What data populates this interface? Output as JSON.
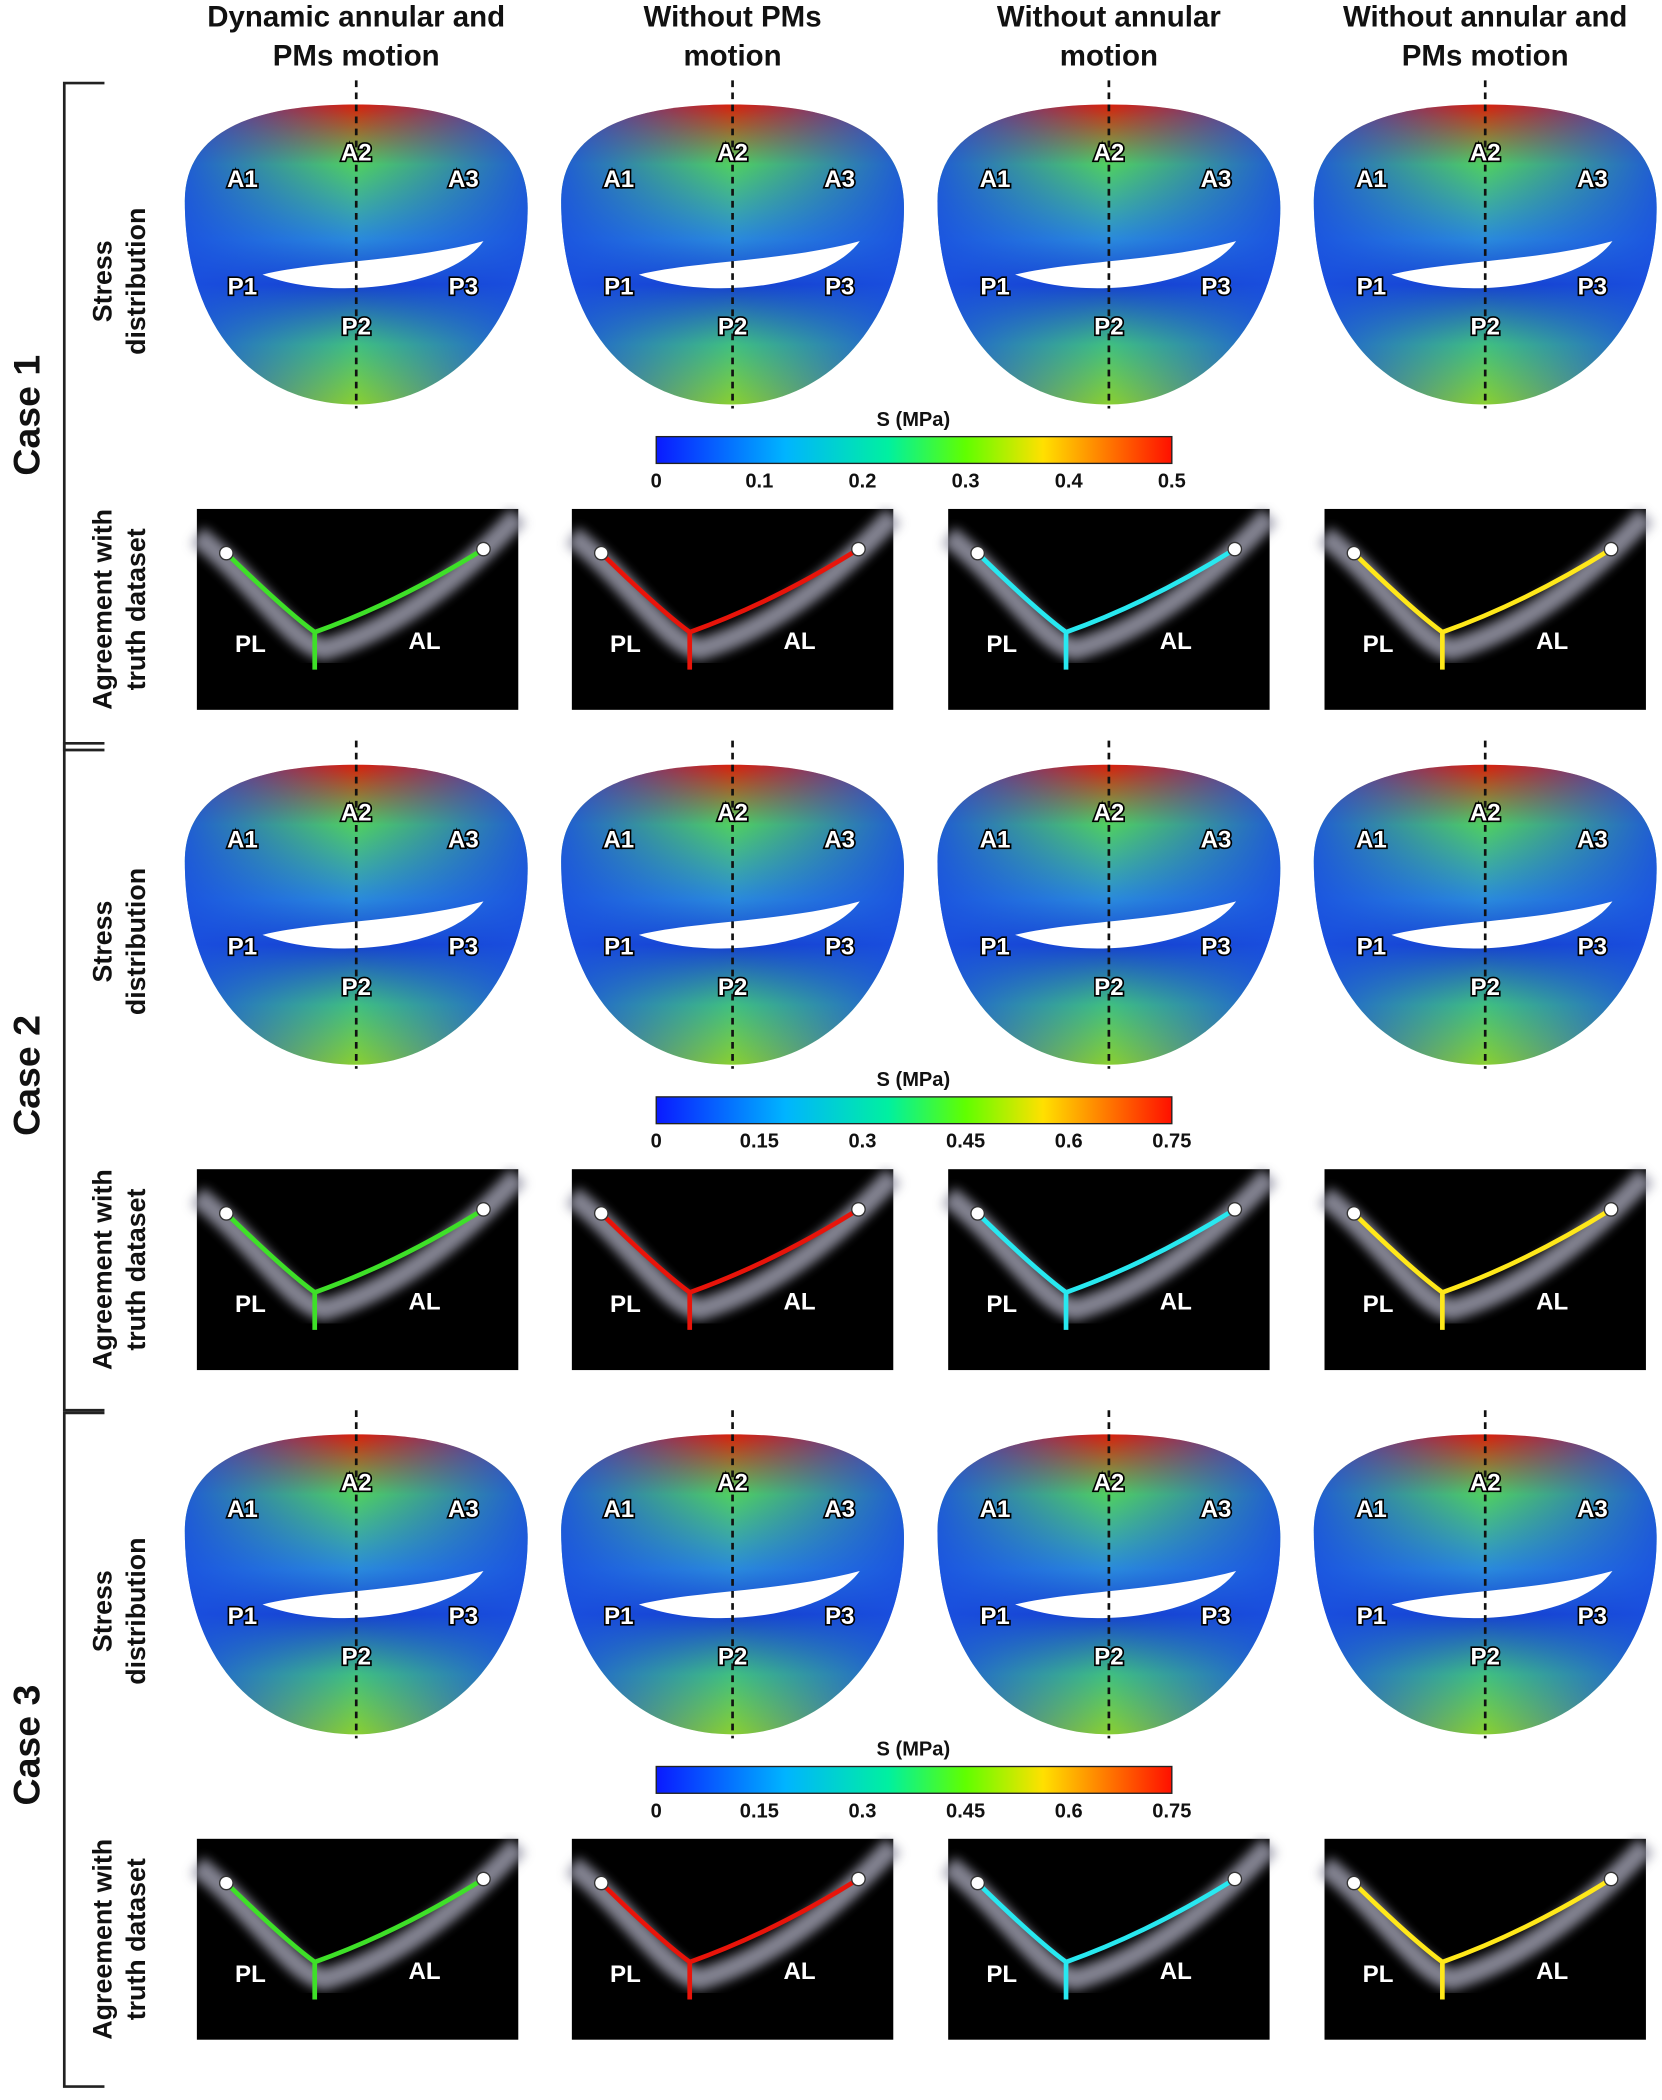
{
  "columns": [
    [
      "Dynamic annular and",
      "PMs motion"
    ],
    [
      "Without PMs",
      "motion"
    ],
    [
      "Without annular",
      "motion"
    ],
    [
      "Without annular and",
      "PMs motion"
    ]
  ],
  "row_labels": {
    "stress": [
      "Stress",
      "distribution"
    ],
    "agreement": [
      "Agreement with",
      "truth dataset"
    ]
  },
  "leaflet_labels": [
    "A1",
    "A2",
    "A3",
    "P1",
    "P2",
    "P3"
  ],
  "curve_labels": [
    "PL",
    "AL"
  ],
  "cases": [
    {
      "label": "Case 1",
      "colorbar": {
        "title": "S (MPa)",
        "ticks": [
          0,
          0.1,
          0.2,
          0.3,
          0.4,
          0.5
        ]
      }
    },
    {
      "label": "Case 2",
      "colorbar": {
        "title": "S (MPa)",
        "ticks": [
          0,
          0.15,
          0.3,
          0.45,
          0.6,
          0.75
        ]
      }
    },
    {
      "label": "Case 3",
      "colorbar": {
        "title": "S (MPa)",
        "ticks": [
          0,
          0.15,
          0.3,
          0.45,
          0.6,
          0.75
        ]
      }
    }
  ]
}
